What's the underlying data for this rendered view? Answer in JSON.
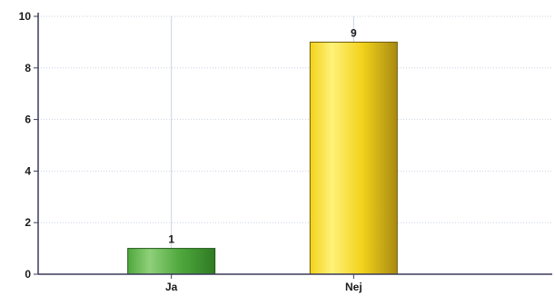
{
  "chart_data": {
    "type": "bar",
    "title": "",
    "xlabel": "",
    "ylabel": "",
    "categories": [
      "Ja",
      "Nej"
    ],
    "values": [
      1,
      9
    ],
    "data_labels": [
      "1",
      "9"
    ],
    "ylim": [
      0,
      10
    ],
    "yticks": [
      0,
      2,
      4,
      6,
      8,
      10
    ],
    "ytick_labels": [
      "0",
      "2",
      "4",
      "6",
      "8",
      "10"
    ],
    "grid": true,
    "legend": "none",
    "bar_colors": [
      {
        "light": "#8fd07a",
        "mid": "#4fa83c",
        "dark": "#2f7a24",
        "edge": "#1f5a18"
      },
      {
        "light": "#fff27a",
        "mid": "#f2d21a",
        "dark": "#a98a12",
        "edge": "#6d5a0a"
      }
    ],
    "axis_color": "#3a3a5a",
    "grid_color": "#c9d3e2"
  }
}
